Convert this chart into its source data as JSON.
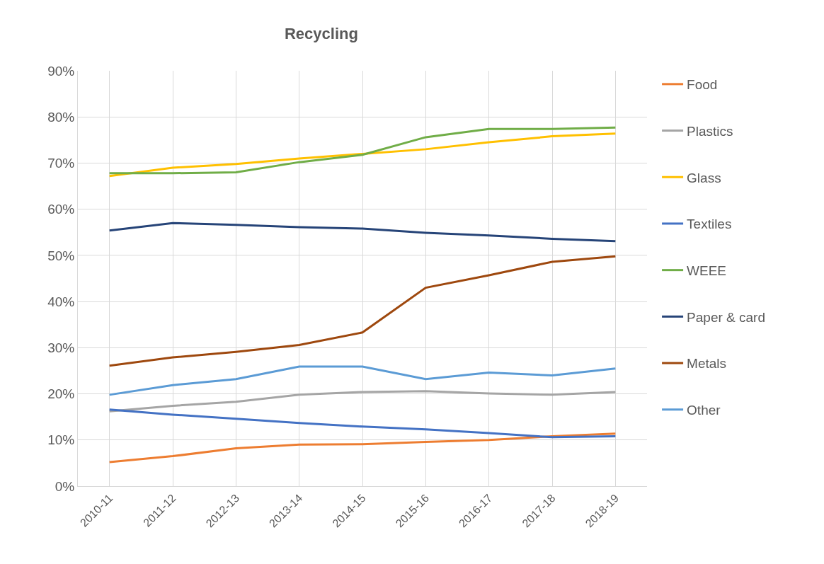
{
  "chart_data": {
    "type": "line",
    "title": "Recycling",
    "categories": [
      "2010-11",
      "2011-12",
      "2012-13",
      "2013-14",
      "2014-15",
      "2015-16",
      "2016-17",
      "2017-18",
      "2018-19"
    ],
    "ylim": [
      0,
      90
    ],
    "yticks": [
      {
        "value": 0,
        "label": "0%"
      },
      {
        "value": 10,
        "label": "10%"
      },
      {
        "value": 20,
        "label": "20%"
      },
      {
        "value": 30,
        "label": "30%"
      },
      {
        "value": 40,
        "label": "40%"
      },
      {
        "value": 50,
        "label": "50%"
      },
      {
        "value": 60,
        "label": "60%"
      },
      {
        "value": 70,
        "label": "70%"
      },
      {
        "value": 80,
        "label": "80%"
      },
      {
        "value": 90,
        "label": "90%"
      }
    ],
    "grid": true,
    "legend": "right",
    "marker": "none",
    "line_style": "solid",
    "series": [
      {
        "name": "Food",
        "color": "#ed7d31",
        "values": [
          5.2,
          6.5,
          8.2,
          9,
          9.1,
          9.6,
          10,
          10.8,
          11.4
        ]
      },
      {
        "name": "Plastics",
        "color": "#a5a5a5",
        "values": [
          16.2,
          17.4,
          18.3,
          19.8,
          20.4,
          20.6,
          20.1,
          19.8,
          20.4
        ]
      },
      {
        "name": "Glass",
        "color": "#ffc000",
        "values": [
          67.2,
          69,
          69.8,
          71,
          72,
          73,
          74.5,
          75.8,
          76.4
        ]
      },
      {
        "name": "Textiles",
        "color": "#4472c4",
        "values": [
          16.6,
          15.5,
          14.6,
          13.7,
          12.9,
          12.3,
          11.5,
          10.6,
          10.8
        ]
      },
      {
        "name": "WEEE",
        "color": "#70ad47",
        "values": [
          67.8,
          67.8,
          68,
          70.2,
          71.8,
          75.6,
          77.4,
          77.4,
          77.7
        ]
      },
      {
        "name": "Paper & card",
        "color": "#264478",
        "values": [
          55.4,
          57,
          56.6,
          56.1,
          55.8,
          54.9,
          54.3,
          53.6,
          53.1
        ]
      },
      {
        "name": "Metals",
        "color": "#9e480e",
        "values": [
          26.1,
          27.9,
          29.1,
          30.6,
          33.3,
          43,
          45.7,
          48.6,
          49.8
        ]
      },
      {
        "name": "Other",
        "color": "#5b9bd5",
        "values": [
          19.8,
          21.9,
          23.2,
          25.9,
          25.9,
          23.2,
          24.6,
          24,
          25.5
        ]
      }
    ]
  }
}
